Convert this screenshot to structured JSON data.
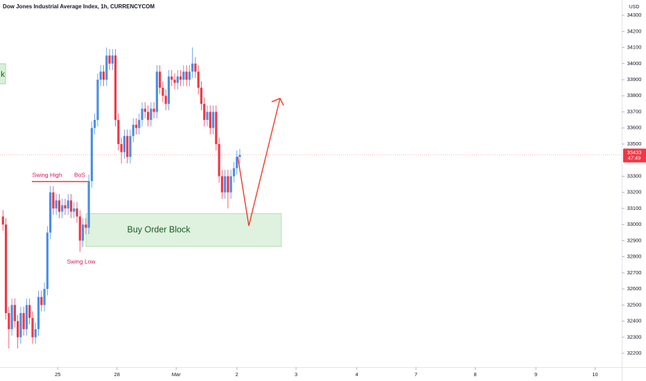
{
  "chart_data": {
    "type": "candlestick",
    "title": "Dow Jones Industrial Average Index, 1h, CURRENCYCOM",
    "y_axis_label": "USD",
    "up_color": "#4a8fe7",
    "down_color": "#f23645",
    "grid": false,
    "last_price": 33433,
    "countdown": "47:49",
    "annotations": {
      "swing_high": "Swing High",
      "bos": "BoS",
      "swing_low": "Swing Low",
      "order_block": "Buy Order Block",
      "left_box": "k"
    },
    "swing_high_level": 33267,
    "order_block_range": [
      33069,
      32863
    ],
    "xlim": [
      0,
      210
    ],
    "xticks": [
      {
        "value": 19.5,
        "label": "25"
      },
      {
        "value": 39.5,
        "label": "28"
      },
      {
        "value": 59.5,
        "label": "Mar"
      },
      {
        "value": 80,
        "label": "2"
      },
      {
        "value": 100,
        "label": "3"
      },
      {
        "value": 120.5,
        "label": "4"
      },
      {
        "value": 140.5,
        "label": "7"
      },
      {
        "value": 160.5,
        "label": "8"
      },
      {
        "value": 181,
        "label": "9"
      },
      {
        "value": 201,
        "label": "10"
      }
    ],
    "ylim": [
      32114,
      34395
    ],
    "yticks": [
      34300,
      34200,
      34100,
      34000,
      33900,
      33800,
      33700,
      33600,
      33500,
      33300,
      33200,
      33100,
      33000,
      32900,
      32800,
      32700,
      32600,
      32500,
      32400,
      32300,
      32200
    ],
    "x": [
      1,
      2,
      3,
      4,
      5,
      6,
      7,
      8,
      9,
      10,
      11,
      12,
      13,
      14,
      15,
      16,
      17,
      18,
      19,
      20,
      21,
      22,
      23,
      24,
      25,
      26,
      27,
      28,
      29,
      30,
      31,
      32,
      33,
      34,
      35,
      36,
      37,
      38,
      39,
      40,
      41,
      42,
      43,
      44,
      45,
      46,
      47,
      48,
      49,
      50,
      51,
      52,
      53,
      54,
      55,
      56,
      57,
      58,
      59,
      60,
      61,
      62,
      63,
      64,
      65,
      66,
      67,
      68,
      69,
      70,
      71,
      72,
      73,
      74,
      75,
      76,
      77,
      78,
      79,
      80,
      81
    ],
    "candles": [
      [
        33050,
        33090,
        32960,
        33000
      ],
      [
        33000,
        33040,
        32410,
        32450
      ],
      [
        32450,
        32490,
        32230,
        32350
      ],
      [
        32350,
        32540,
        32310,
        32500
      ],
      [
        32500,
        32540,
        32360,
        32400
      ],
      [
        32400,
        32440,
        32230,
        32300
      ],
      [
        32300,
        32490,
        32260,
        32450
      ],
      [
        32450,
        32490,
        32310,
        32350
      ],
      [
        32350,
        32540,
        32310,
        32500
      ],
      [
        32500,
        32540,
        32380,
        32420
      ],
      [
        32420,
        32460,
        32260,
        32300
      ],
      [
        32300,
        32390,
        32260,
        32350
      ],
      [
        32350,
        32590,
        32310,
        32550
      ],
      [
        32550,
        32590,
        32460,
        32500
      ],
      [
        32500,
        32640,
        32460,
        32600
      ],
      [
        32600,
        32990,
        32560,
        32950
      ],
      [
        32950,
        33240,
        32910,
        33200
      ],
      [
        33200,
        33240,
        33060,
        33100
      ],
      [
        33100,
        33190,
        33060,
        33150
      ],
      [
        33150,
        33190,
        33040,
        33080
      ],
      [
        33080,
        33160,
        33040,
        33120
      ],
      [
        33120,
        33160,
        33060,
        33100
      ],
      [
        33100,
        33190,
        33060,
        33150
      ],
      [
        33150,
        33190,
        33040,
        33080
      ],
      [
        33080,
        33140,
        33040,
        33100
      ],
      [
        33100,
        33140,
        33010,
        33050
      ],
      [
        33050,
        33090,
        32830,
        32900
      ],
      [
        32900,
        33040,
        32860,
        33000
      ],
      [
        33000,
        33040,
        32940,
        32980
      ],
      [
        32980,
        33310,
        32940,
        33270
      ],
      [
        33270,
        33640,
        33230,
        33600
      ],
      [
        33600,
        33690,
        33560,
        33650
      ],
      [
        33650,
        33940,
        33610,
        33900
      ],
      [
        33900,
        33990,
        33860,
        33950
      ],
      [
        33950,
        33990,
        33860,
        33900
      ],
      [
        33900,
        34100,
        33860,
        34050
      ],
      [
        34050,
        34090,
        33960,
        34000
      ],
      [
        34000,
        34090,
        33960,
        34050
      ],
      [
        34050,
        34090,
        33610,
        33650
      ],
      [
        33650,
        33690,
        33460,
        33500
      ],
      [
        33500,
        33540,
        33380,
        33450
      ],
      [
        33450,
        33590,
        33410,
        33550
      ],
      [
        33550,
        33590,
        33380,
        33420
      ],
      [
        33420,
        33590,
        33380,
        33550
      ],
      [
        33550,
        33660,
        33510,
        33620
      ],
      [
        33620,
        33660,
        33560,
        33600
      ],
      [
        33600,
        33690,
        33560,
        33650
      ],
      [
        33650,
        33760,
        33610,
        33720
      ],
      [
        33720,
        33760,
        33660,
        33700
      ],
      [
        33700,
        33740,
        33610,
        33650
      ],
      [
        33650,
        33760,
        33610,
        33720
      ],
      [
        33720,
        33760,
        33660,
        33700
      ],
      [
        33700,
        33990,
        33660,
        33950
      ],
      [
        33950,
        33990,
        33810,
        33850
      ],
      [
        33850,
        33890,
        33760,
        33800
      ],
      [
        33800,
        33840,
        33710,
        33750
      ],
      [
        33750,
        33960,
        33710,
        33920
      ],
      [
        33920,
        33960,
        33860,
        33900
      ],
      [
        33900,
        33940,
        33840,
        33880
      ],
      [
        33880,
        33960,
        33840,
        33920
      ],
      [
        33920,
        33960,
        33860,
        33900
      ],
      [
        33900,
        33990,
        33860,
        33950
      ],
      [
        33950,
        33990,
        33860,
        33900
      ],
      [
        33900,
        33990,
        33860,
        33950
      ],
      [
        33950,
        34100,
        33910,
        34000
      ],
      [
        34000,
        34040,
        33910,
        33950
      ],
      [
        33950,
        33990,
        33810,
        33850
      ],
      [
        33850,
        33890,
        33710,
        33750
      ],
      [
        33750,
        33790,
        33610,
        33650
      ],
      [
        33650,
        33740,
        33610,
        33700
      ],
      [
        33700,
        33740,
        33560,
        33600
      ],
      [
        33600,
        33740,
        33560,
        33700
      ],
      [
        33700,
        33740,
        33460,
        33500
      ],
      [
        33500,
        33540,
        33260,
        33300
      ],
      [
        33300,
        33340,
        33160,
        33200
      ],
      [
        33200,
        33340,
        33160,
        33300
      ],
      [
        33300,
        33340,
        33100,
        33200
      ],
      [
        33200,
        33340,
        33160,
        33300
      ],
      [
        33300,
        33390,
        33260,
        33350
      ],
      [
        33350,
        33460,
        33310,
        33420
      ],
      [
        33420,
        33470,
        33380,
        33433
      ]
    ]
  }
}
